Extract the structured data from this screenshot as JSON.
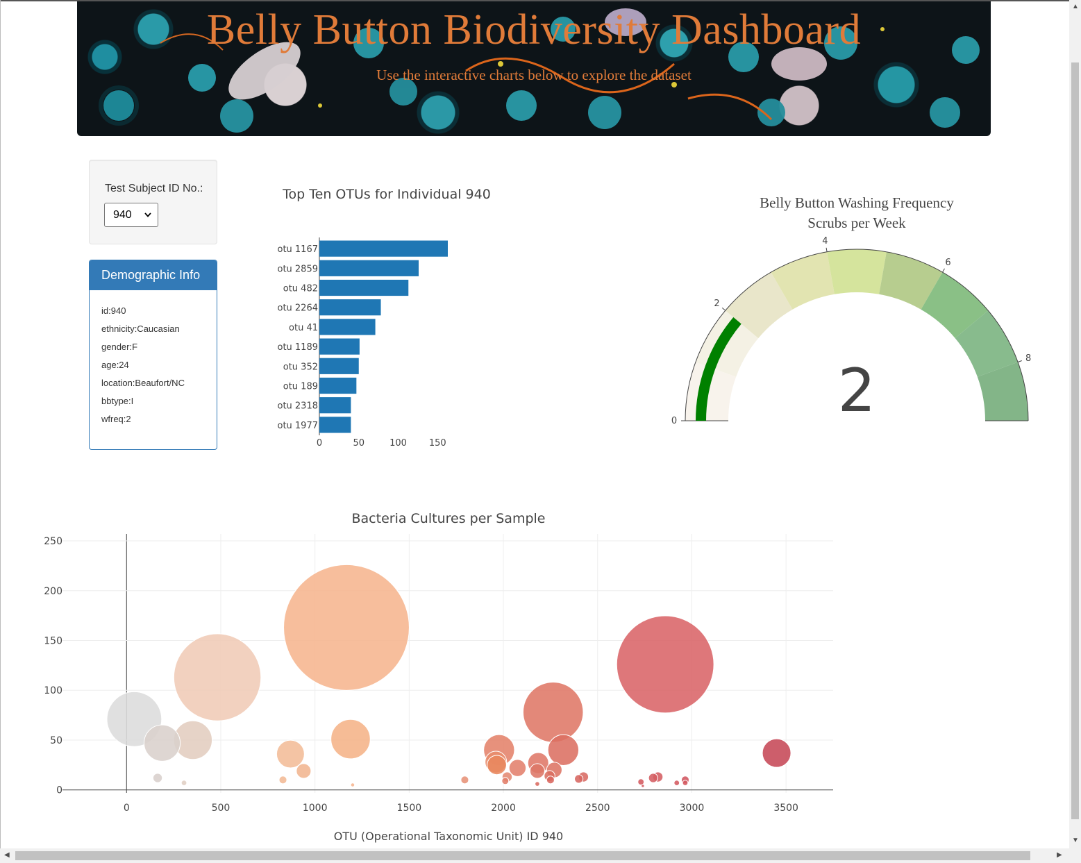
{
  "hero": {
    "title": "Belly Button Biodiversity Dashboard",
    "subtitle": "Use the interactive charts below to explore the dataset"
  },
  "selector": {
    "label": "Test Subject ID No.:",
    "selected": "940"
  },
  "demographics": {
    "heading": "Demographic Info",
    "rows": [
      "id:940",
      "ethnicity:Caucasian",
      "gender:F",
      "age:24",
      "location:Beaufort/NC",
      "bbtype:I",
      "wfreq:2"
    ]
  },
  "colors": {
    "bar": "#1f77b4",
    "panel": "#337ab7",
    "hero_text": "#e07b39",
    "gauge_needle_band": "#008000"
  },
  "chart_data": [
    {
      "type": "bar",
      "orientation": "horizontal",
      "title": "Top Ten OTUs for Individual 940",
      "categories": [
        "otu 1167",
        "otu 2859",
        "otu 482",
        "otu 2264",
        "otu 41",
        "otu 1189",
        "otu 352",
        "otu 189",
        "otu 2318",
        "otu 1977"
      ],
      "values": [
        163,
        126,
        113,
        78,
        71,
        51,
        50,
        47,
        40,
        40
      ],
      "xticks": [
        "0",
        "50",
        "100",
        "150"
      ],
      "xlim": [
        0,
        163
      ]
    },
    {
      "type": "gauge",
      "title": "Belly Button Washing Frequency",
      "subtitle": "Scrubs per Week",
      "value": 2,
      "value_label": "2",
      "range": [
        0,
        9
      ],
      "ticks": [
        "0",
        "2",
        "4",
        "6",
        "8"
      ],
      "steps": [
        {
          "range": [
            0,
            1
          ],
          "color": "#f8f3ec"
        },
        {
          "range": [
            1,
            2
          ],
          "color": "#f4f1e4"
        },
        {
          "range": [
            2,
            3
          ],
          "color": "#e9e6ca"
        },
        {
          "range": [
            3,
            4
          ],
          "color": "#e2e4b1"
        },
        {
          "range": [
            4,
            5
          ],
          "color": "#d5e49d"
        },
        {
          "range": [
            5,
            6
          ],
          "color": "#b7cd8f"
        },
        {
          "range": [
            6,
            7
          ],
          "color": "#8ac086"
        },
        {
          "range": [
            7,
            8
          ],
          "color": "#88bb8d"
        },
        {
          "range": [
            8,
            9
          ],
          "color": "#83b588"
        }
      ]
    },
    {
      "type": "scatter",
      "title": "Bacteria Cultures per Sample",
      "xlabel": "OTU (Operational Taxonomic Unit) ID 940",
      "xlim": [
        -340,
        3750
      ],
      "ylim": [
        -3,
        257
      ],
      "xticks": [
        0,
        500,
        1000,
        1500,
        2000,
        2500,
        3000,
        3500
      ],
      "yticks": [
        0,
        50,
        100,
        150,
        200,
        250
      ],
      "points": [
        {
          "x": 41,
          "y": 71,
          "c": "#dcdcdc"
        },
        {
          "x": 189,
          "y": 47,
          "c": "#dad0cc"
        },
        {
          "x": 352,
          "y": 50,
          "c": "#e2cdbf"
        },
        {
          "x": 482,
          "y": 113,
          "c": "#f0cbb6"
        },
        {
          "x": 1167,
          "y": 163,
          "c": "#f6b58e"
        },
        {
          "x": 1189,
          "y": 51,
          "c": "#f5b387"
        },
        {
          "x": 870,
          "y": 36,
          "c": "#f3bc97"
        },
        {
          "x": 940,
          "y": 19,
          "c": "#f1b590"
        },
        {
          "x": 165,
          "y": 12,
          "c": "#d8cfcc"
        },
        {
          "x": 305,
          "y": 7,
          "c": "#e0cfc4"
        },
        {
          "x": 830,
          "y": 10,
          "c": "#f2b995"
        },
        {
          "x": 1200,
          "y": 5,
          "c": "#f6b58e"
        },
        {
          "x": 1795,
          "y": 10,
          "c": "#e79277"
        },
        {
          "x": 1977,
          "y": 40,
          "c": "#e4826a"
        },
        {
          "x": 1960,
          "y": 28,
          "c": "#e88c6c"
        },
        {
          "x": 1965,
          "y": 25,
          "c": "#e8875f"
        },
        {
          "x": 2020,
          "y": 13,
          "c": "#e48a73"
        },
        {
          "x": 2010,
          "y": 9,
          "c": "#e27e6a"
        },
        {
          "x": 2075,
          "y": 22,
          "c": "#e3806c"
        },
        {
          "x": 2185,
          "y": 27,
          "c": "#df7868"
        },
        {
          "x": 2180,
          "y": 19,
          "c": "#dd7666"
        },
        {
          "x": 2264,
          "y": 78,
          "c": "#df7766"
        },
        {
          "x": 2318,
          "y": 40,
          "c": "#dc6f62"
        },
        {
          "x": 2270,
          "y": 20,
          "c": "#dd7464"
        },
        {
          "x": 2245,
          "y": 14,
          "c": "#da6e61"
        },
        {
          "x": 2250,
          "y": 10,
          "c": "#d9675e"
        },
        {
          "x": 2180,
          "y": 6,
          "c": "#d96a60"
        },
        {
          "x": 2425,
          "y": 13,
          "c": "#d86a63"
        },
        {
          "x": 2400,
          "y": 11,
          "c": "#d76661"
        },
        {
          "x": 2859,
          "y": 126,
          "c": "#d96468"
        },
        {
          "x": 2795,
          "y": 12,
          "c": "#d45d62"
        },
        {
          "x": 2820,
          "y": 13,
          "c": "#d45d62"
        },
        {
          "x": 2730,
          "y": 8,
          "c": "#d45a60"
        },
        {
          "x": 2740,
          "y": 4,
          "c": "#d45a60"
        },
        {
          "x": 2965,
          "y": 7,
          "c": "#d45a61"
        },
        {
          "x": 2920,
          "y": 7,
          "c": "#d45a61"
        },
        {
          "x": 2965,
          "y": 10,
          "c": "#d05560"
        },
        {
          "x": 3450,
          "y": 37,
          "c": "#c64857"
        }
      ]
    }
  ]
}
